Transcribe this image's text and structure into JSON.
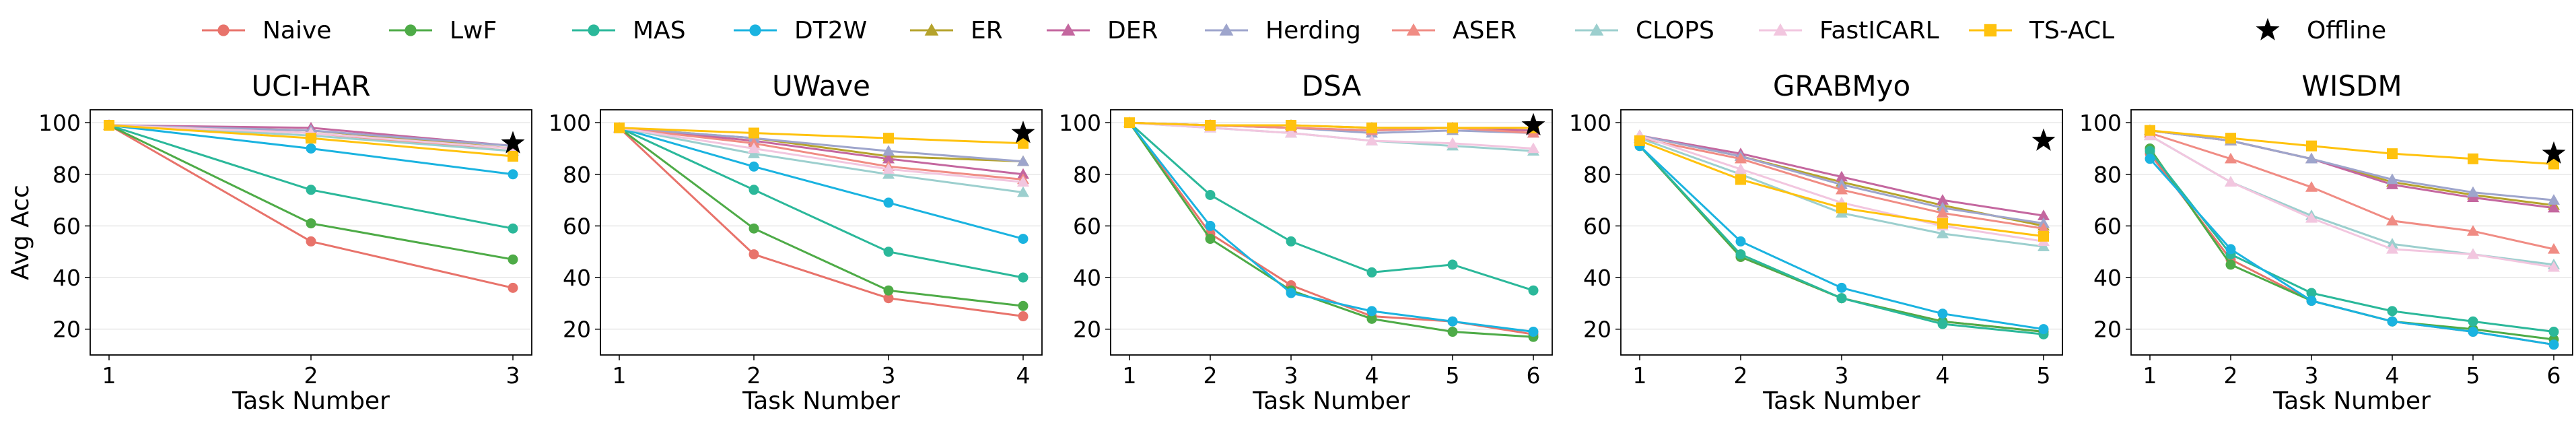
{
  "legend": [
    {
      "name": "Naive",
      "color": "#e8736b",
      "marker": "circle"
    },
    {
      "name": "LwF",
      "color": "#4eab47",
      "marker": "circle"
    },
    {
      "name": "MAS",
      "color": "#2bb89a",
      "marker": "circle"
    },
    {
      "name": "DT2W",
      "color": "#1ab3e0",
      "marker": "circle"
    },
    {
      "name": "ER",
      "color": "#b5a32c",
      "marker": "triangle"
    },
    {
      "name": "DER",
      "color": "#c4679f",
      "marker": "triangle"
    },
    {
      "name": "Herding",
      "color": "#9ea5cc",
      "marker": "triangle"
    },
    {
      "name": "ASER",
      "color": "#f08c84",
      "marker": "triangle"
    },
    {
      "name": "CLOPS",
      "color": "#9ccfce",
      "marker": "triangle"
    },
    {
      "name": "FastICARL",
      "color": "#f2c6df",
      "marker": "triangle"
    },
    {
      "name": "TS-ACL",
      "color": "#ffc20e",
      "marker": "square"
    },
    {
      "name": "Offline",
      "color": "#000000",
      "marker": "star"
    }
  ],
  "chart_data": [
    {
      "type": "line",
      "title": "UCI-HAR",
      "xlabel": "Task Number",
      "ylabel": "Avg Acc",
      "x": [
        1,
        2,
        3
      ],
      "ylim": [
        10,
        105
      ],
      "yticks": [
        20,
        40,
        60,
        80,
        100
      ],
      "series": [
        {
          "name": "Naive",
          "values": [
            99,
            54,
            36
          ]
        },
        {
          "name": "LwF",
          "values": [
            99,
            61,
            47
          ]
        },
        {
          "name": "MAS",
          "values": [
            99,
            74,
            59
          ]
        },
        {
          "name": "DT2W",
          "values": [
            99,
            90,
            80
          ]
        },
        {
          "name": "ER",
          "values": [
            99,
            97,
            90
          ]
        },
        {
          "name": "DER",
          "values": [
            99,
            98,
            91
          ]
        },
        {
          "name": "Herding",
          "values": [
            99,
            97,
            91
          ]
        },
        {
          "name": "ASER",
          "values": [
            99,
            96,
            89
          ]
        },
        {
          "name": "CLOPS",
          "values": [
            99,
            95,
            89
          ]
        },
        {
          "name": "FastICARL",
          "values": [
            99,
            96,
            90
          ]
        },
        {
          "name": "TS-ACL",
          "values": [
            99,
            94,
            87
          ]
        }
      ],
      "offline": {
        "x": 3,
        "value": 92
      }
    },
    {
      "type": "line",
      "title": "UWave",
      "xlabel": "Task Number",
      "ylabel": "",
      "x": [
        1,
        2,
        3,
        4
      ],
      "ylim": [
        10,
        105
      ],
      "yticks": [
        20,
        40,
        60,
        80,
        100
      ],
      "series": [
        {
          "name": "Naive",
          "values": [
            98,
            49,
            32,
            25
          ]
        },
        {
          "name": "LwF",
          "values": [
            98,
            59,
            35,
            29
          ]
        },
        {
          "name": "MAS",
          "values": [
            98,
            74,
            50,
            40
          ]
        },
        {
          "name": "DT2W",
          "values": [
            98,
            83,
            69,
            55
          ]
        },
        {
          "name": "ER",
          "values": [
            98,
            94,
            87,
            85
          ]
        },
        {
          "name": "DER",
          "values": [
            98,
            93,
            86,
            80
          ]
        },
        {
          "name": "Herding",
          "values": [
            98,
            94,
            89,
            85
          ]
        },
        {
          "name": "ASER",
          "values": [
            98,
            92,
            83,
            78
          ]
        },
        {
          "name": "CLOPS",
          "values": [
            98,
            88,
            80,
            73
          ]
        },
        {
          "name": "FastICARL",
          "values": [
            98,
            90,
            82,
            77
          ]
        },
        {
          "name": "TS-ACL",
          "values": [
            98,
            96,
            94,
            92
          ]
        }
      ],
      "offline": {
        "x": 4,
        "value": 96
      }
    },
    {
      "type": "line",
      "title": "DSA",
      "xlabel": "Task Number",
      "ylabel": "",
      "x": [
        1,
        2,
        3,
        4,
        5,
        6
      ],
      "ylim": [
        10,
        105
      ],
      "yticks": [
        20,
        40,
        60,
        80,
        100
      ],
      "series": [
        {
          "name": "Naive",
          "values": [
            100,
            57,
            37,
            25,
            23,
            18
          ]
        },
        {
          "name": "LwF",
          "values": [
            100,
            55,
            35,
            24,
            19,
            17
          ]
        },
        {
          "name": "MAS",
          "values": [
            100,
            72,
            54,
            42,
            45,
            35
          ]
        },
        {
          "name": "DT2W",
          "values": [
            100,
            60,
            34,
            27,
            23,
            19
          ]
        },
        {
          "name": "ER",
          "values": [
            100,
            99,
            99,
            98,
            98,
            97
          ]
        },
        {
          "name": "DER",
          "values": [
            100,
            99,
            98,
            97,
            98,
            97
          ]
        },
        {
          "name": "Herding",
          "values": [
            100,
            99,
            98,
            96,
            97,
            96
          ]
        },
        {
          "name": "ASER",
          "values": [
            100,
            99,
            98,
            97,
            98,
            96
          ]
        },
        {
          "name": "CLOPS",
          "values": [
            100,
            98,
            96,
            93,
            91,
            89
          ]
        },
        {
          "name": "FastICARL",
          "values": [
            100,
            98,
            96,
            93,
            92,
            90
          ]
        },
        {
          "name": "TS-ACL",
          "values": [
            100,
            99,
            99,
            98,
            98,
            98
          ]
        }
      ],
      "offline": {
        "x": 6,
        "value": 99
      }
    },
    {
      "type": "line",
      "title": "GRABMyo",
      "xlabel": "Task Number",
      "ylabel": "",
      "x": [
        1,
        2,
        3,
        4,
        5
      ],
      "ylim": [
        10,
        105
      ],
      "yticks": [
        20,
        40,
        60,
        80,
        100
      ],
      "series": [
        {
          "name": "Naive",
          "values": [
            91,
            48,
            32,
            23,
            19
          ]
        },
        {
          "name": "LwF",
          "values": [
            91,
            48,
            32,
            23,
            19
          ]
        },
        {
          "name": "MAS",
          "values": [
            91,
            49,
            32,
            22,
            18
          ]
        },
        {
          "name": "DT2W",
          "values": [
            91,
            54,
            36,
            26,
            20
          ]
        },
        {
          "name": "ER",
          "values": [
            95,
            87,
            77,
            68,
            60
          ]
        },
        {
          "name": "DER",
          "values": [
            95,
            88,
            79,
            70,
            64
          ]
        },
        {
          "name": "Herding",
          "values": [
            95,
            87,
            76,
            67,
            61
          ]
        },
        {
          "name": "ASER",
          "values": [
            94,
            86,
            74,
            65,
            59
          ]
        },
        {
          "name": "CLOPS",
          "values": [
            94,
            80,
            65,
            57,
            52
          ]
        },
        {
          "name": "FastICARL",
          "values": [
            95,
            82,
            69,
            60,
            54
          ]
        },
        {
          "name": "TS-ACL",
          "values": [
            93,
            78,
            67,
            61,
            56
          ]
        }
      ],
      "offline": {
        "x": 5,
        "value": 93
      }
    },
    {
      "type": "line",
      "title": "WISDM",
      "xlabel": "Task Number",
      "ylabel": "",
      "x": [
        1,
        2,
        3,
        4,
        5,
        6
      ],
      "ylim": [
        10,
        105
      ],
      "yticks": [
        20,
        40,
        60,
        80,
        100
      ],
      "series": [
        {
          "name": "Naive",
          "values": [
            88,
            47,
            31,
            23,
            19,
            14
          ]
        },
        {
          "name": "LwF",
          "values": [
            90,
            45,
            31,
            23,
            20,
            16
          ]
        },
        {
          "name": "MAS",
          "values": [
            89,
            49,
            34,
            27,
            23,
            19
          ]
        },
        {
          "name": "DT2W",
          "values": [
            86,
            51,
            31,
            23,
            19,
            14
          ]
        },
        {
          "name": "ER",
          "values": [
            97,
            93,
            86,
            77,
            72,
            68
          ]
        },
        {
          "name": "DER",
          "values": [
            97,
            93,
            86,
            76,
            71,
            67
          ]
        },
        {
          "name": "Herding",
          "values": [
            97,
            93,
            86,
            78,
            73,
            70
          ]
        },
        {
          "name": "ASER",
          "values": [
            96,
            86,
            75,
            62,
            58,
            51
          ]
        },
        {
          "name": "CLOPS",
          "values": [
            95,
            77,
            64,
            53,
            49,
            45
          ]
        },
        {
          "name": "FastICARL",
          "values": [
            95,
            77,
            63,
            51,
            49,
            44
          ]
        },
        {
          "name": "TS-ACL",
          "values": [
            97,
            94,
            91,
            88,
            86,
            84
          ]
        }
      ],
      "offline": {
        "x": 6,
        "value": 88
      }
    }
  ]
}
